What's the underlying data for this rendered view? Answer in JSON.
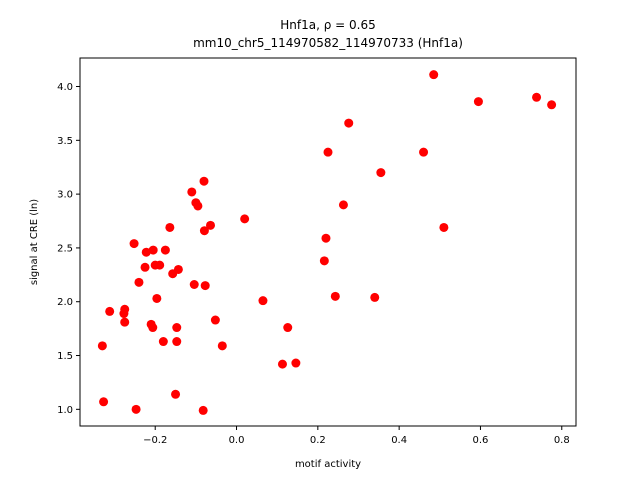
{
  "chart_data": {
    "type": "scatter",
    "title_line1": "Hnf1a, ρ = 0.65",
    "title_line2": "mm10_chr5_114970582_114970733 (Hnf1a)",
    "xlabel": "motif activity",
    "ylabel": "signal at CRE (ln)",
    "xlim": [
      -0.385,
      0.835
    ],
    "ylim": [
      0.845,
      4.265
    ],
    "xticks": [
      -0.2,
      0.0,
      0.2,
      0.4,
      0.6,
      0.8
    ],
    "xtick_labels": [
      "−0.2",
      "0.0",
      "0.2",
      "0.4",
      "0.6",
      "0.8"
    ],
    "yticks": [
      1.0,
      1.5,
      2.0,
      2.5,
      3.0,
      3.5,
      4.0
    ],
    "ytick_labels": [
      "1.0",
      "1.5",
      "2.0",
      "2.5",
      "3.0",
      "3.5",
      "4.0"
    ],
    "grid": false,
    "legend": "none",
    "marker_color": "#ff0000",
    "points": [
      {
        "x": -0.33,
        "y": 1.59
      },
      {
        "x": -0.327,
        "y": 1.07
      },
      {
        "x": -0.312,
        "y": 1.91
      },
      {
        "x": -0.277,
        "y": 1.89
      },
      {
        "x": -0.275,
        "y": 1.93
      },
      {
        "x": -0.275,
        "y": 1.81
      },
      {
        "x": -0.252,
        "y": 2.54
      },
      {
        "x": -0.247,
        "y": 1.0
      },
      {
        "x": -0.24,
        "y": 2.18
      },
      {
        "x": -0.225,
        "y": 2.32
      },
      {
        "x": -0.222,
        "y": 2.46
      },
      {
        "x": -0.21,
        "y": 1.79
      },
      {
        "x": -0.206,
        "y": 1.76
      },
      {
        "x": -0.205,
        "y": 2.48
      },
      {
        "x": -0.2,
        "y": 2.34
      },
      {
        "x": -0.196,
        "y": 2.03
      },
      {
        "x": -0.189,
        "y": 2.34
      },
      {
        "x": -0.18,
        "y": 1.63
      },
      {
        "x": -0.175,
        "y": 2.48
      },
      {
        "x": -0.164,
        "y": 2.69
      },
      {
        "x": -0.157,
        "y": 2.26
      },
      {
        "x": -0.15,
        "y": 1.14
      },
      {
        "x": -0.147,
        "y": 1.76
      },
      {
        "x": -0.147,
        "y": 1.63
      },
      {
        "x": -0.143,
        "y": 2.3
      },
      {
        "x": -0.11,
        "y": 3.02
      },
      {
        "x": -0.104,
        "y": 2.16
      },
      {
        "x": -0.1,
        "y": 2.92
      },
      {
        "x": -0.095,
        "y": 2.89
      },
      {
        "x": -0.08,
        "y": 3.12
      },
      {
        "x": -0.082,
        "y": 0.99
      },
      {
        "x": -0.079,
        "y": 2.66
      },
      {
        "x": -0.077,
        "y": 2.15
      },
      {
        "x": -0.064,
        "y": 2.71
      },
      {
        "x": -0.052,
        "y": 1.83
      },
      {
        "x": -0.035,
        "y": 1.59
      },
      {
        "x": 0.02,
        "y": 2.77
      },
      {
        "x": 0.065,
        "y": 2.01
      },
      {
        "x": 0.113,
        "y": 1.42
      },
      {
        "x": 0.126,
        "y": 1.76
      },
      {
        "x": 0.146,
        "y": 1.43
      },
      {
        "x": 0.216,
        "y": 2.38
      },
      {
        "x": 0.22,
        "y": 2.59
      },
      {
        "x": 0.225,
        "y": 3.39
      },
      {
        "x": 0.243,
        "y": 2.05
      },
      {
        "x": 0.263,
        "y": 2.9
      },
      {
        "x": 0.276,
        "y": 3.66
      },
      {
        "x": 0.34,
        "y": 2.04
      },
      {
        "x": 0.355,
        "y": 3.2
      },
      {
        "x": 0.46,
        "y": 3.39
      },
      {
        "x": 0.485,
        "y": 4.11
      },
      {
        "x": 0.51,
        "y": 2.69
      },
      {
        "x": 0.595,
        "y": 3.86
      },
      {
        "x": 0.738,
        "y": 3.9
      },
      {
        "x": 0.775,
        "y": 3.83
      }
    ]
  }
}
